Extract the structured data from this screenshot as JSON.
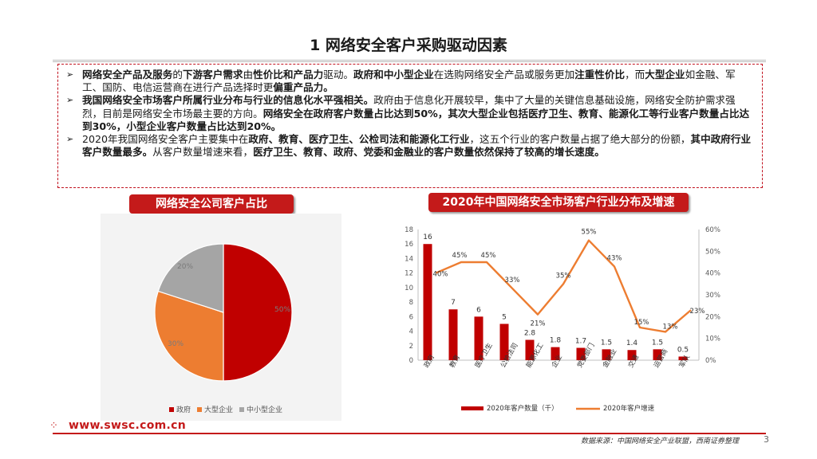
{
  "page": {
    "title": "1 网络安全客户采购驱动因素",
    "page_number": "3"
  },
  "bullets": [
    {
      "mark": "➢",
      "parts": [
        {
          "t": "网络安全产品及服务",
          "b": true
        },
        {
          "t": "的",
          "b": false
        },
        {
          "t": "下游客户需求",
          "b": true
        },
        {
          "t": "由",
          "b": false
        },
        {
          "t": "性价比和产品力",
          "b": true
        },
        {
          "t": "驱动。",
          "b": false
        },
        {
          "t": "政府和中小型企业",
          "b": true
        },
        {
          "t": "在选购网络安全产品或服务更加",
          "b": false
        },
        {
          "t": "注重性价比",
          "b": true
        },
        {
          "t": "，而",
          "b": false
        },
        {
          "t": "大型企业",
          "b": true
        },
        {
          "t": "如金融、军工、国防、电信运营商在进行产品选择时更",
          "b": false
        },
        {
          "t": "偏重产品力。",
          "b": true
        }
      ]
    },
    {
      "mark": "➢",
      "parts": [
        {
          "t": "我国网络安全市场客户所属行业分布与行业的信息化水平强相关。",
          "b": true
        },
        {
          "t": "政府由于信息化开展较早，集中了大量的关键信息基础设施，网络安全防护需求强烈，目前是网络安全市场最主要的方向。",
          "b": false
        },
        {
          "t": "网络安全在政府客户数量占比达到50%，其次大型企业包括医疗卫生、教育、能源化工等行业客户数量占比达到30%，小型企业客户数量占比达到20%。",
          "b": true
        }
      ]
    },
    {
      "mark": "➢",
      "parts": [
        {
          "t": "2020年我国网络安全客户主要集中在",
          "b": false
        },
        {
          "t": "政府、教育、医疗卫生、公检司法和能源化工行业",
          "b": true
        },
        {
          "t": "，这五个行业的客户数量占据了绝大部分的份额，",
          "b": false
        },
        {
          "t": "其中政府行业客户数量最多。",
          "b": true
        },
        {
          "t": "从客户数量增速来看，",
          "b": false
        },
        {
          "t": "医疗卫生、教育、政府、党委和金融业的客户数量依然保持了较高的增长速度。",
          "b": true
        }
      ]
    }
  ],
  "left_chart": {
    "heading": "网络安全公司客户占比",
    "colors": {
      "government": "#c00000",
      "large": "#ed7d31",
      "small": "#a5a5a5"
    },
    "labels": [
      "50%",
      "30%",
      "20%"
    ],
    "legend": [
      "政府",
      "大型企业",
      "中小型企业"
    ]
  },
  "right_chart": {
    "heading": "2020年中国网络安全市场客户行业分布及增速"
  },
  "chart_data": [
    {
      "type": "pie",
      "title": "网络安全公司客户占比",
      "categories": [
        "政府",
        "大型企业",
        "中小型企业"
      ],
      "values": [
        50,
        30,
        20
      ],
      "data_labels": [
        "50%",
        "30%",
        "20%"
      ],
      "colors": [
        "#c00000",
        "#ed7d31",
        "#a5a5a5"
      ],
      "legend_position": "bottom"
    },
    {
      "type": "bar",
      "title": "2020年中国网络安全市场客户行业分布及增速",
      "categories": [
        "政府",
        "教育",
        "医疗卫生",
        "公检法司",
        "能源化工",
        "企业",
        "党委部门",
        "金融业",
        "交通",
        "运营商",
        "军队"
      ],
      "series": [
        {
          "name": "2020年客户数量（千）",
          "kind": "bar",
          "axis": "left",
          "color": "#c00000",
          "values": [
            16,
            7,
            6,
            5,
            2.8,
            1.8,
            1.7,
            1.5,
            1.4,
            1.5,
            0.5
          ],
          "labels": [
            "16",
            "7",
            "6",
            "5",
            "2.8",
            "1.8",
            "1.7",
            "1.5",
            "1.4",
            "1.5",
            "0.5"
          ]
        },
        {
          "name": "2020年客户增速",
          "kind": "line",
          "axis": "right",
          "color": "#ed7d31",
          "values": [
            40,
            45,
            45,
            33,
            21,
            35,
            55,
            43,
            15,
            13,
            23
          ],
          "labels": [
            "40%",
            "45%",
            "45%",
            "33%",
            "21%",
            "35%",
            "55%",
            "43%",
            "15%",
            "13%",
            "23%"
          ]
        }
      ],
      "ylim": [
        0,
        18
      ],
      "yticks": [
        "0",
        "2",
        "4",
        "6",
        "8",
        "10",
        "12",
        "14",
        "16",
        "18"
      ],
      "y2lim": [
        0,
        60
      ],
      "y2ticks": [
        "0%",
        "10%",
        "20%",
        "30%",
        "40%",
        "50%",
        "60%"
      ],
      "legend_position": "bottom",
      "grid": false
    }
  ],
  "footer": {
    "url": "www.swsc.com.cn",
    "source": "数据来源：中国网络安全产业联盟，西南证券整理"
  }
}
